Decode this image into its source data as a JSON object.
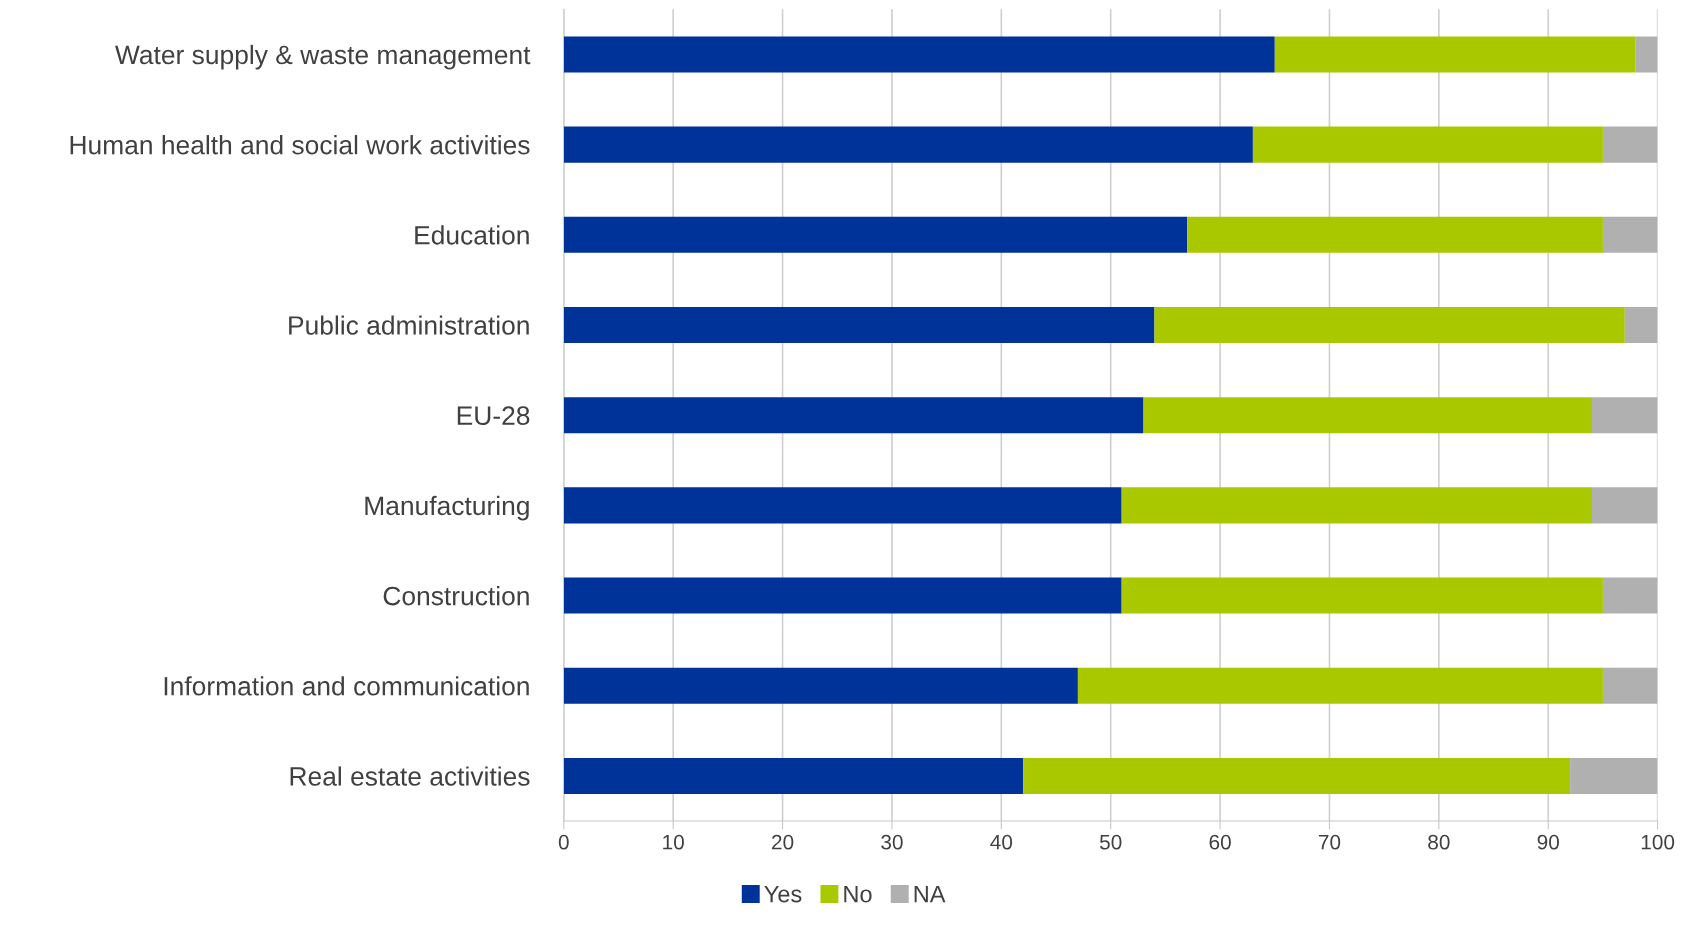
{
  "chart_data": {
    "type": "bar",
    "orientation": "horizontal",
    "stacked": true,
    "categories": [
      "Water supply & waste management",
      "Human health and social work activities",
      "Education",
      "Public administration",
      "EU-28",
      "Manufacturing",
      "Construction",
      "Information and communication",
      "Real estate activities"
    ],
    "series": [
      {
        "name": "Yes",
        "color": "#003399",
        "values": [
          65,
          63,
          57,
          54,
          53,
          51,
          51,
          47,
          42
        ]
      },
      {
        "name": "No",
        "color": "#aac800",
        "values": [
          33,
          32,
          38,
          43,
          41,
          43,
          44,
          48,
          50
        ]
      },
      {
        "name": "NA",
        "color": "#b0b0b0",
        "values": [
          2,
          5,
          5,
          3,
          6,
          6,
          5,
          5,
          8
        ]
      }
    ],
    "xlim": [
      0,
      100
    ],
    "xticks": [
      0,
      10,
      20,
      30,
      40,
      50,
      60,
      70,
      80,
      90,
      100
    ],
    "grid": "x",
    "legend": "bottom"
  }
}
